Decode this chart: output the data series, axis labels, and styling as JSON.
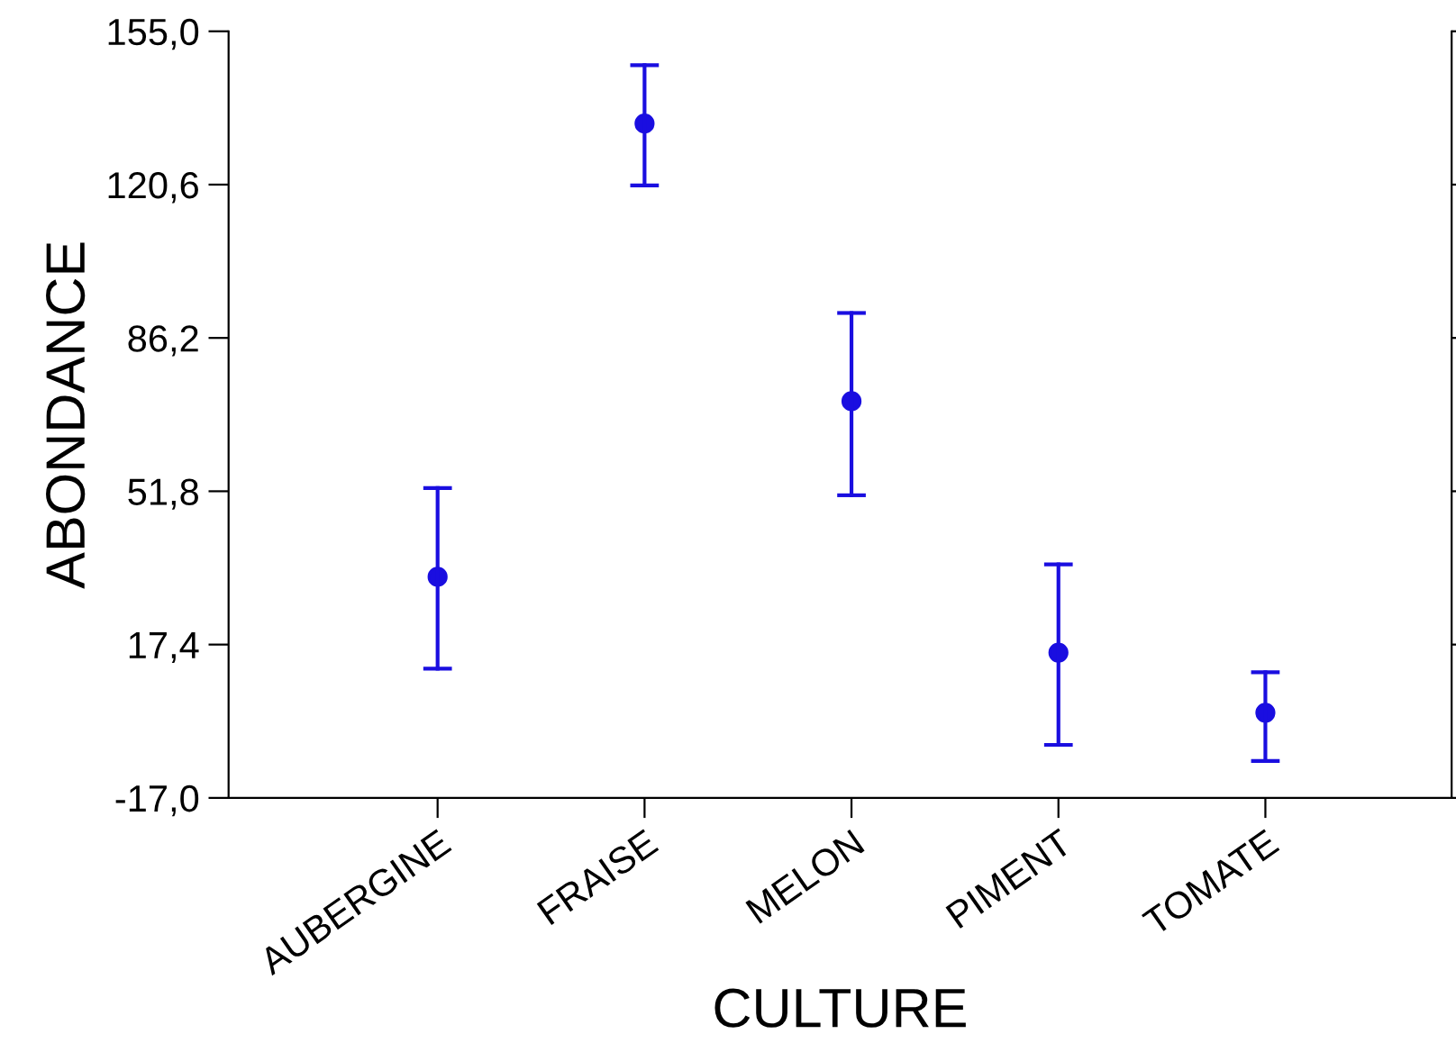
{
  "chart_data": {
    "type": "scatter",
    "xlabel": "CULTURE",
    "ylabel": "ABONDANCE",
    "categories": [
      "AUBERGINE",
      "FRAISE",
      "MELON",
      "PIMENT",
      "TOMATE"
    ],
    "values": [
      32.6,
      134.3,
      72.0,
      15.6,
      2.1
    ],
    "errors": [
      [
        12.0,
        52.5
      ],
      [
        120.4,
        147.4
      ],
      [
        50.9,
        91.8
      ],
      [
        -5.1,
        35.4
      ],
      [
        -8.7,
        11.2
      ]
    ],
    "color": "#1a0ee0",
    "marker": "circle",
    "grid": false,
    "legend": false,
    "ylim": [
      -17,
      155
    ],
    "yticks": [
      {
        "value": -17,
        "label": "-17,0"
      },
      {
        "value": 17.4,
        "label": "17,4"
      },
      {
        "value": 51.8,
        "label": "51,8"
      },
      {
        "value": 86.2,
        "label": "86,2"
      },
      {
        "value": 120.6,
        "label": "120,6"
      },
      {
        "value": 155,
        "label": "155,0"
      }
    ]
  }
}
